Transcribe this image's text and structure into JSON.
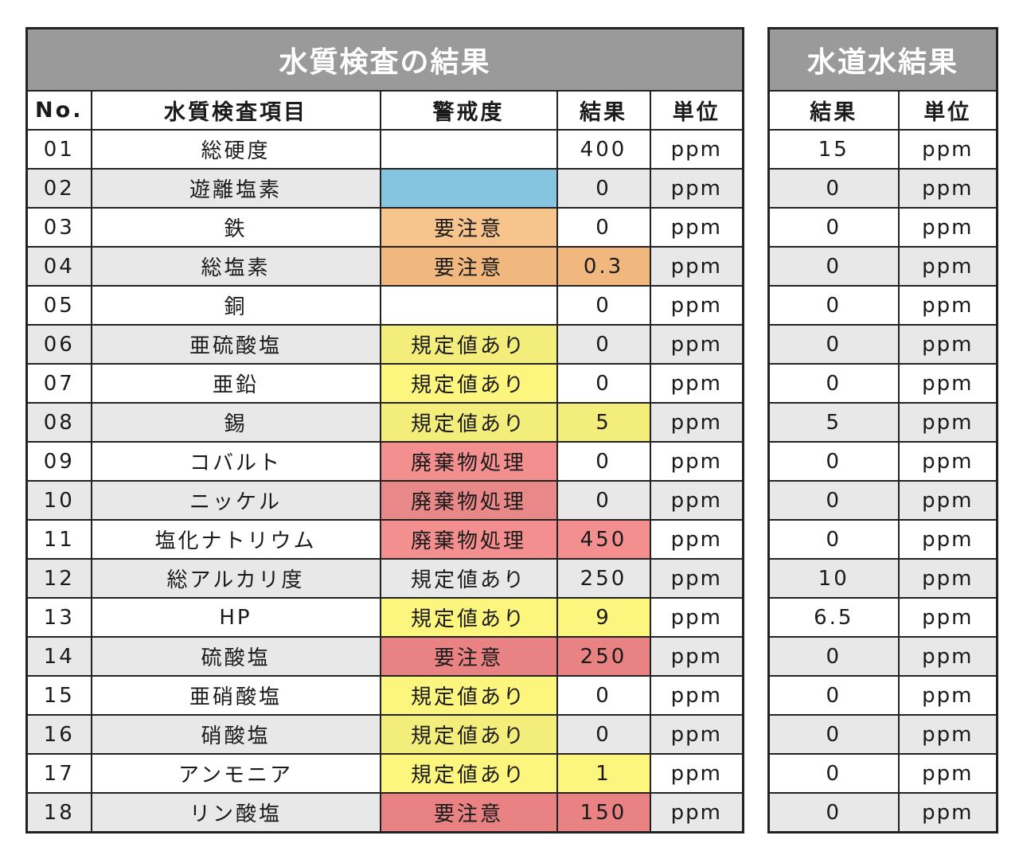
{
  "main_table": {
    "title": "水質検査の結果",
    "columns": [
      "No.",
      "水質検査項目",
      "警戒度",
      "結果",
      "単位"
    ],
    "rows": [
      [
        "01",
        "総硬度",
        null,
        400,
        "ppm"
      ],
      [
        "02",
        "遊離塩素",
        null,
        0,
        "ppm"
      ],
      [
        "03",
        "鉄",
        "要注意",
        0,
        "ppm"
      ],
      [
        "04",
        "総塩素",
        "要注意",
        0.3,
        "ppm"
      ],
      [
        "05",
        "銅",
        null,
        0,
        "ppm"
      ],
      [
        "06",
        "亜硫酸塩",
        "規定値あり",
        0,
        "ppm"
      ],
      [
        "07",
        "亜鉛",
        "規定値あり",
        0,
        "ppm"
      ],
      [
        "08",
        "錫",
        "規定値あり",
        5,
        "ppm"
      ],
      [
        "09",
        "コバルト",
        "廃棄物処理",
        0,
        "ppm"
      ],
      [
        "10",
        "ニッケル",
        "廃棄物処理",
        0,
        "ppm"
      ],
      [
        "11",
        "塩化ナトリウム",
        "廃棄物処理",
        450,
        "ppm"
      ],
      [
        "12",
        "総アルカリ度",
        "規定値あり",
        250,
        "ppm"
      ],
      [
        "13",
        "HP",
        "規定値あり",
        9,
        "ppm"
      ],
      [
        "14",
        "硫酸塩",
        "要注意",
        250,
        "ppm"
      ],
      [
        "15",
        "亜硝酸塩",
        "規定値あり",
        0,
        "ppm"
      ],
      [
        "16",
        "硝酸塩",
        "規定値あり",
        0,
        "ppm"
      ],
      [
        "17",
        "アンモニア",
        "規定値あり",
        1,
        "ppm"
      ],
      [
        "18",
        "リン酸塩",
        "要注意",
        150,
        "ppm"
      ]
    ]
  },
  "tap_table": {
    "title": "水道水結果",
    "columns": [
      "結果",
      "単位"
    ],
    "rows": [
      [
        15,
        "ppm"
      ],
      [
        0,
        "ppm"
      ],
      [
        0,
        "ppm"
      ],
      [
        0,
        "ppm"
      ],
      [
        0,
        "ppm"
      ],
      [
        0,
        "ppm"
      ],
      [
        0,
        "ppm"
      ],
      [
        5,
        "ppm"
      ],
      [
        0,
        "ppm"
      ],
      [
        0,
        "ppm"
      ],
      [
        0,
        "ppm"
      ],
      [
        10,
        "ppm"
      ],
      [
        6.5,
        "ppm"
      ],
      [
        0,
        "ppm"
      ],
      [
        0,
        "ppm"
      ],
      [
        0,
        "ppm"
      ],
      [
        0,
        "ppm"
      ],
      [
        0,
        "ppm"
      ]
    ]
  }
}
